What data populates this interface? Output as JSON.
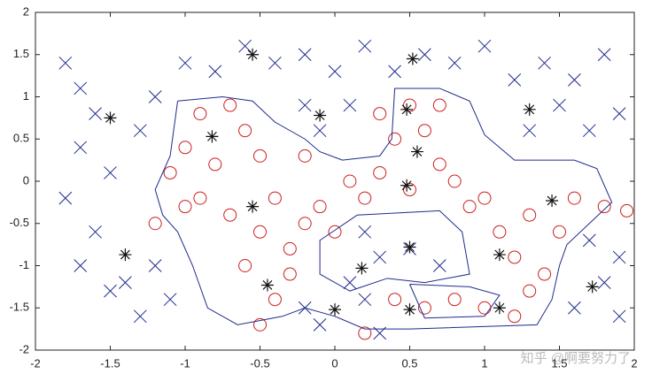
{
  "chart_data": {
    "type": "scatter",
    "xlim": [
      -2,
      2
    ],
    "ylim": [
      -2,
      2
    ],
    "xticks": [
      -2,
      -1.5,
      -1,
      -0.5,
      0,
      0.5,
      1,
      1.5,
      2
    ],
    "yticks": [
      -2,
      -1.5,
      -1,
      -0.5,
      0,
      0.5,
      1,
      1.5,
      2
    ],
    "series": [
      {
        "marker": "x",
        "color": "#1f2a8c",
        "x": [
          -1.8,
          -1.7,
          -1.6,
          -1.7,
          -1.5,
          -1.8,
          -1.6,
          -1.7,
          -1.5,
          -1.3,
          -1.4,
          -1.2,
          -1.1,
          -1.3,
          -1.2,
          -1.0,
          -0.8,
          -0.6,
          -0.4,
          -0.2,
          0.0,
          0.2,
          0.4,
          0.6,
          0.8,
          1.0,
          1.2,
          1.4,
          1.6,
          1.8,
          1.9,
          1.7,
          1.5,
          1.3,
          1.9,
          1.8,
          1.6,
          1.9,
          1.7,
          -0.1,
          -0.2,
          0.1,
          0.2,
          0.3,
          0.5,
          0.7,
          0.1,
          0.2,
          -0.1,
          -0.2,
          0.3
        ],
        "y": [
          1.4,
          1.1,
          0.8,
          0.4,
          0.1,
          -0.2,
          -0.6,
          -1.0,
          -1.3,
          -1.6,
          -1.2,
          -1.0,
          -1.4,
          0.6,
          1.0,
          1.4,
          1.3,
          1.6,
          1.4,
          1.5,
          1.3,
          1.6,
          1.3,
          1.5,
          1.4,
          1.6,
          1.2,
          1.4,
          1.2,
          1.5,
          0.8,
          0.6,
          0.9,
          0.6,
          -0.9,
          -1.2,
          -1.5,
          -1.6,
          -0.7,
          0.6,
          0.9,
          0.9,
          -0.6,
          -0.9,
          -0.8,
          -1.0,
          -1.2,
          -1.4,
          -1.7,
          -1.5,
          -1.8
        ]
      },
      {
        "marker": "o",
        "color": "#cc1f1f",
        "x": [
          -0.9,
          -0.7,
          -1.0,
          -0.8,
          -0.6,
          -0.5,
          -1.1,
          -0.9,
          -0.7,
          -0.4,
          -0.2,
          -0.3,
          -0.5,
          -0.6,
          -0.4,
          -0.5,
          -0.3,
          -0.1,
          0.0,
          0.2,
          0.3,
          0.4,
          0.5,
          0.6,
          0.7,
          0.5,
          0.8,
          0.9,
          1.0,
          1.1,
          1.2,
          1.3,
          1.4,
          1.5,
          1.6,
          1.8,
          1.95,
          0.4,
          0.6,
          0.8,
          1.0,
          1.2,
          0.2,
          -1.2,
          -1.0,
          0.3,
          0.7,
          -0.2,
          0.1,
          1.3
        ],
        "y": [
          0.8,
          0.9,
          0.4,
          0.2,
          0.6,
          0.3,
          0.1,
          -0.2,
          -0.4,
          -0.2,
          -0.5,
          -0.8,
          -0.6,
          -1.0,
          -1.4,
          -1.7,
          -1.1,
          -0.3,
          -0.6,
          -0.2,
          0.1,
          0.5,
          0.9,
          0.6,
          0.2,
          -0.1,
          0.0,
          -0.3,
          -0.2,
          -0.6,
          -0.9,
          -0.4,
          -1.1,
          -0.6,
          -0.2,
          -0.3,
          -0.35,
          -1.4,
          -1.5,
          -1.4,
          -1.5,
          -1.6,
          -1.8,
          -0.5,
          -0.3,
          0.8,
          0.9,
          0.3,
          0.0,
          -1.3
        ]
      },
      {
        "marker": "*",
        "color": "#111111",
        "x": [
          -1.5,
          -1.4,
          -0.82,
          -0.55,
          -0.55,
          -0.45,
          -0.1,
          0.0,
          0.18,
          0.48,
          0.48,
          0.52,
          0.55,
          0.5,
          0.5,
          1.1,
          1.1,
          1.3,
          1.45,
          1.72
        ],
        "y": [
          0.75,
          -0.87,
          0.53,
          1.5,
          -0.3,
          -1.23,
          0.78,
          -1.52,
          -1.03,
          0.85,
          -0.05,
          1.45,
          0.35,
          -0.78,
          -1.52,
          -0.87,
          -1.5,
          0.85,
          -0.23,
          -1.25
        ]
      },
      {
        "marker": "line",
        "color": "#1f2a8c",
        "x": [
          -1.05,
          -0.75,
          -0.55,
          -0.4,
          -0.2,
          -0.1,
          0.05,
          0.3,
          0.38,
          0.4,
          0.7,
          0.9,
          1.0,
          1.2,
          1.6,
          1.75,
          1.85,
          1.7,
          1.55,
          1.5,
          1.45,
          1.35,
          0.5,
          0.2,
          0.0,
          -0.2,
          -0.35,
          -0.65,
          -0.85,
          -0.95,
          -1.05,
          -1.15,
          -1.2,
          -1.1,
          -1.05,
          null,
          0.15,
          0.7,
          0.85,
          0.9,
          0.6,
          0.35,
          0.1,
          -0.1,
          -0.1,
          0.15,
          null,
          0.5,
          0.9,
          1.1,
          1.0,
          0.6,
          0.5
        ],
        "y": [
          0.95,
          1.0,
          0.95,
          0.7,
          0.5,
          0.35,
          0.25,
          0.3,
          0.5,
          1.1,
          1.1,
          0.95,
          0.55,
          0.25,
          0.25,
          0.15,
          -0.25,
          -0.5,
          -0.75,
          -1.0,
          -1.4,
          -1.7,
          -1.75,
          -1.75,
          -1.6,
          -1.5,
          -1.6,
          -1.7,
          -1.5,
          -1.0,
          -0.6,
          -0.4,
          -0.1,
          0.3,
          0.95,
          null,
          -0.4,
          -0.35,
          -0.6,
          -1.1,
          -1.2,
          -1.15,
          -1.3,
          -1.1,
          -0.7,
          -0.4,
          null,
          -1.22,
          -1.25,
          -1.35,
          -1.6,
          -1.62,
          -1.22
        ]
      }
    ]
  },
  "watermark": "知乎 @啊要努力了"
}
